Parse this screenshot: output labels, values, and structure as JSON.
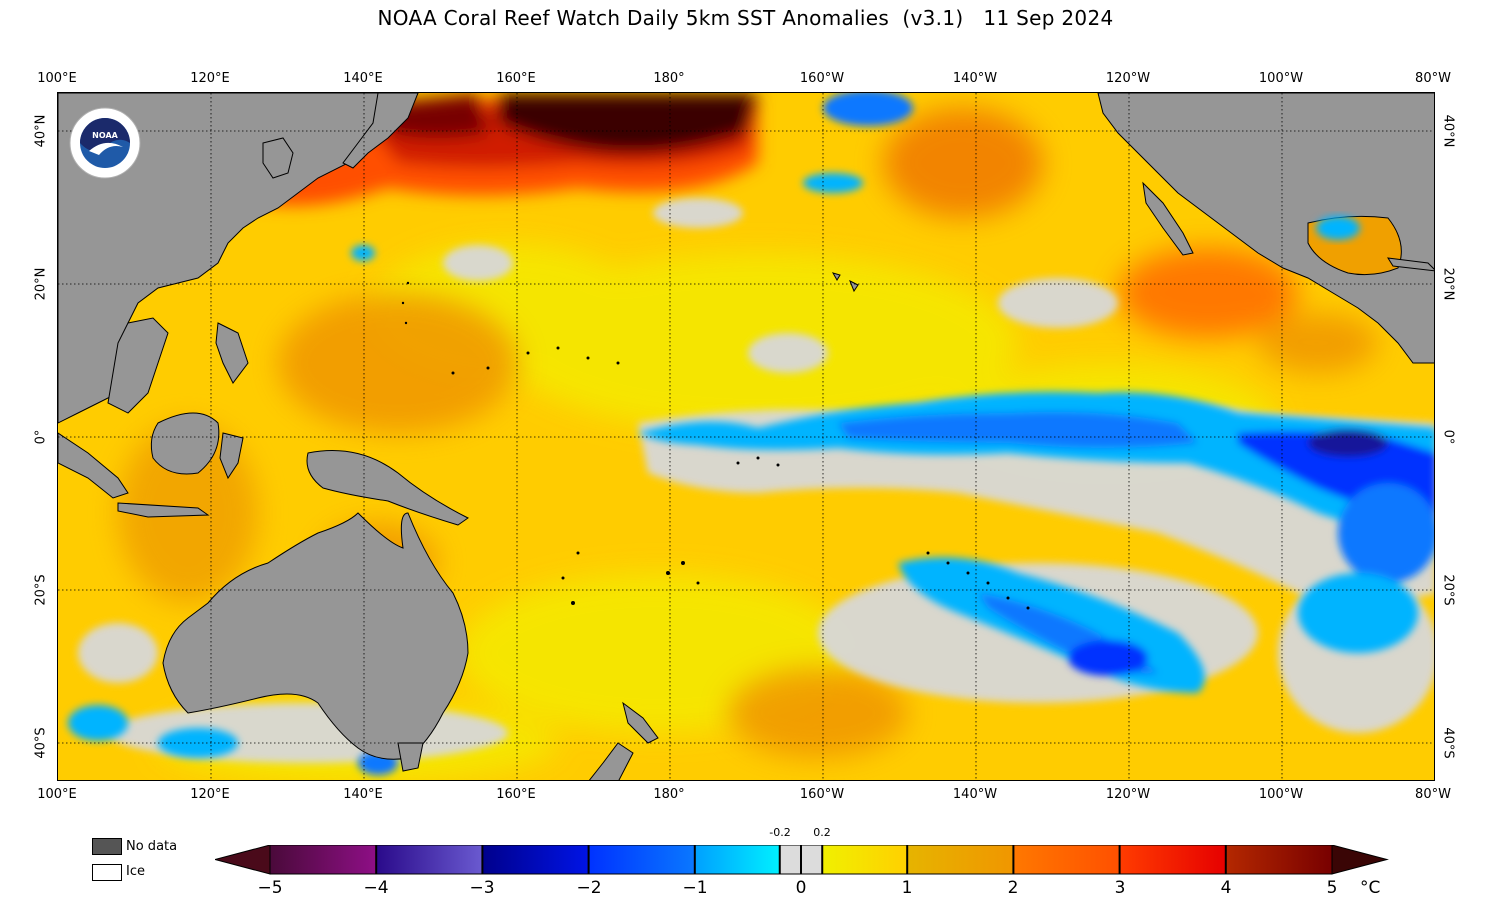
{
  "title": "NOAA Coral Reef Watch Daily 5km SST Anomalies  (v3.1)   11 Sep 2024",
  "map": {
    "lon_ticks": [
      "100°E",
      "120°E",
      "140°E",
      "160°E",
      "180°",
      "160°W",
      "140°W",
      "120°W",
      "100°W",
      "80°W"
    ],
    "lat_ticks": [
      "40°N",
      "20°N",
      "0°",
      "20°S",
      "40°S"
    ],
    "extent": {
      "lon_min": 100,
      "lon_max": 280,
      "lat_min": -45,
      "lat_max": 45
    },
    "colors": {
      "land": "#969696",
      "neutral": "#d8d8d8",
      "gridline": "#000000"
    }
  },
  "logo": {
    "name": "NOAA",
    "icon": "noaa-logo-icon"
  },
  "legend": {
    "no_data": {
      "label": "No data",
      "color": "#555555"
    },
    "ice": {
      "label": "Ice",
      "color": "#ffffff"
    }
  },
  "colorbar": {
    "ticks": [
      "−5",
      "−4",
      "−3",
      "−2",
      "−1",
      "0",
      "1",
      "2",
      "3",
      "4",
      "5"
    ],
    "small_ticks": [
      "-0.2",
      "0.2"
    ],
    "unit": "°C",
    "range": [
      -5,
      5
    ],
    "under_color": "#4a0a1a",
    "over_color": "#3a0505",
    "segments": [
      {
        "from": -5,
        "to": -4,
        "start": "#4a0a3a",
        "end": "#8e0f86"
      },
      {
        "from": -4,
        "to": -3,
        "start": "#2a0a8a",
        "end": "#6a5ad0"
      },
      {
        "from": -3,
        "to": -2,
        "start": "#00008c",
        "end": "#0014e6"
      },
      {
        "from": -2,
        "to": -1,
        "start": "#0032ff",
        "end": "#0a78ff"
      },
      {
        "from": -1,
        "to": -0.2,
        "start": "#00a0ff",
        "end": "#00f0ff"
      },
      {
        "from": -0.2,
        "to": 0.2,
        "start": "#dcdcdc",
        "end": "#dcdcdc"
      },
      {
        "from": 0.2,
        "to": 1,
        "start": "#f0f000",
        "end": "#ffd000"
      },
      {
        "from": 1,
        "to": 2,
        "start": "#e6b400",
        "end": "#f09600"
      },
      {
        "from": 2,
        "to": 3,
        "start": "#ff7800",
        "end": "#ff5000"
      },
      {
        "from": 3,
        "to": 4,
        "start": "#ff3c00",
        "end": "#e60000"
      },
      {
        "from": 4,
        "to": 5,
        "start": "#b42800",
        "end": "#780000"
      }
    ]
  }
}
